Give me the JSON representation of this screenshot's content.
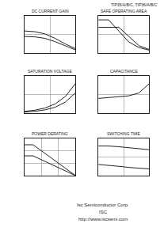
{
  "header": "TIP35/A/B/C, TIP36/A/B/C",
  "footer": [
    "Isc Semiconductor Corp.",
    "ISC",
    "http://www.iscsemi.com"
  ],
  "chart_data": [
    {
      "type": "line",
      "title": "DC CURRENT GAIN",
      "x": [
        0,
        2,
        4,
        6,
        8,
        10
      ],
      "series": [
        {
          "color": "#222222",
          "values": [
            60,
            58,
            52,
            40,
            25,
            12
          ]
        },
        {
          "color": "#222222",
          "values": [
            45,
            44,
            40,
            31,
            20,
            9
          ]
        }
      ],
      "xlim": [
        0,
        10
      ],
      "ylim": [
        0,
        100
      ],
      "xticks": [
        0,
        5,
        10
      ],
      "yticks": [
        0,
        50,
        100
      ],
      "grid": true,
      "tick_labels": false
    },
    {
      "type": "line",
      "title": "SAFE OPERATING AREA",
      "x": [
        0,
        20,
        40,
        60,
        80,
        100
      ],
      "series": [
        {
          "color": "#222222",
          "values": [
            90,
            90,
            60,
            30,
            15,
            8
          ]
        },
        {
          "color": "#222222",
          "values": [
            70,
            70,
            70,
            45,
            20,
            10
          ]
        }
      ],
      "xlim": [
        0,
        100
      ],
      "ylim": [
        0,
        100
      ],
      "xticks": [
        0,
        50,
        100
      ],
      "yticks": [
        0,
        50,
        100
      ],
      "grid": true,
      "tick_labels": false
    },
    {
      "type": "line",
      "title": "SATURATION VOLTAGE",
      "x": [
        0,
        2,
        4,
        6,
        8,
        10
      ],
      "series": [
        {
          "color": "#222222",
          "values": [
            5,
            8,
            14,
            25,
            45,
            80
          ]
        },
        {
          "color": "#222222",
          "values": [
            3,
            5,
            9,
            16,
            30,
            55
          ]
        }
      ],
      "xlim": [
        0,
        10
      ],
      "ylim": [
        0,
        100
      ],
      "xticks": [
        0,
        5,
        10
      ],
      "yticks": [
        0,
        50,
        100
      ],
      "grid": true,
      "tick_labels": false
    },
    {
      "type": "line",
      "title": "CAPACITANCE",
      "x": [
        0,
        20,
        40,
        60,
        80,
        100
      ],
      "series": [
        {
          "color": "#222222",
          "values": [
            40,
            42,
            44,
            47,
            55,
            80
          ]
        }
      ],
      "xlim": [
        0,
        100
      ],
      "ylim": [
        0,
        100
      ],
      "xticks": [
        0,
        50,
        100
      ],
      "yticks": [
        0,
        50,
        100
      ],
      "grid": true,
      "tick_labels": false
    },
    {
      "type": "line",
      "title": "POWER DERATING",
      "x": [
        0,
        25,
        50,
        75,
        100,
        125,
        150
      ],
      "series": [
        {
          "color": "#222222",
          "values": [
            125,
            125,
            100,
            75,
            50,
            25,
            0
          ]
        },
        {
          "color": "#222222",
          "values": [
            80,
            80,
            64,
            48,
            32,
            16,
            0
          ]
        }
      ],
      "xlim": [
        0,
        150
      ],
      "ylim": [
        0,
        150
      ],
      "xticks": [
        0,
        50,
        100,
        150
      ],
      "yticks": [
        0,
        50,
        100,
        150
      ],
      "grid": true,
      "tick_labels": false
    },
    {
      "type": "line",
      "title": "SWITCHING TIME",
      "x": [
        0,
        2,
        4,
        6,
        8,
        10
      ],
      "series": [
        {
          "color": "#222222",
          "values": [
            80,
            80,
            78,
            75,
            72,
            70
          ]
        },
        {
          "color": "#222222",
          "values": [
            30,
            28,
            25,
            22,
            20,
            18
          ]
        }
      ],
      "xlim": [
        0,
        10
      ],
      "ylim": [
        0,
        100
      ],
      "xticks": [
        0,
        5,
        10
      ],
      "yticks": [
        0,
        50,
        100
      ],
      "grid": true,
      "tick_labels": false
    }
  ]
}
